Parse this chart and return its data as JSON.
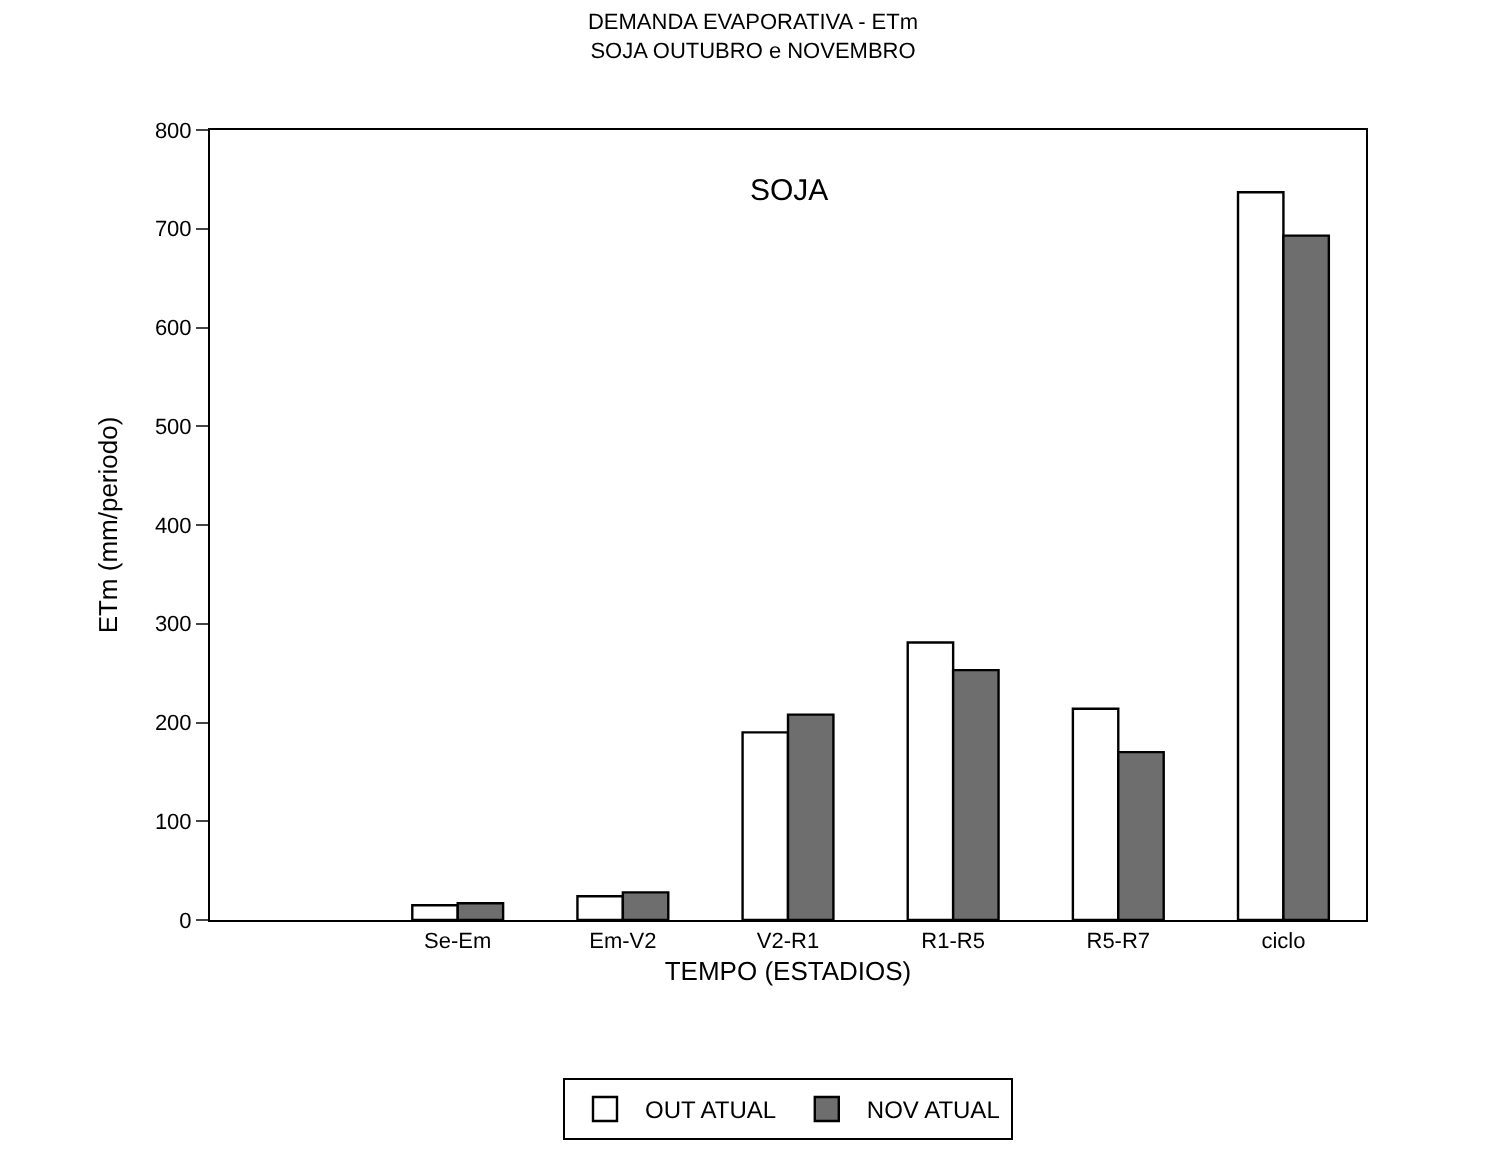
{
  "chart_data": {
    "type": "bar",
    "title": "DEMANDA EVAPORATIVA - ETm\nSOJA OUTUBRO e NOVEMBRO",
    "xlabel": "TEMPO (ESTADIOS)",
    "ylabel": "ETm (mm/periodo)",
    "categories": [
      null,
      "Se-Em",
      "Em-V2",
      "V2-R1",
      "R1-R5",
      "R5-R7",
      "ciclo"
    ],
    "series": [
      {
        "name": "OUT ATUAL",
        "color": "#ffffff",
        "values": [
          null,
          15,
          24,
          190,
          281,
          214,
          737
        ]
      },
      {
        "name": "NOV ATUAL",
        "color": "#6e6e6e",
        "values": [
          null,
          17,
          28,
          208,
          253,
          170,
          693
        ]
      }
    ],
    "annotations": [
      "SOJA"
    ],
    "ylim": [
      0,
      800
    ],
    "yticks": [
      0,
      100,
      200,
      300,
      400,
      500,
      600,
      700,
      800
    ],
    "legend": "bottom"
  }
}
